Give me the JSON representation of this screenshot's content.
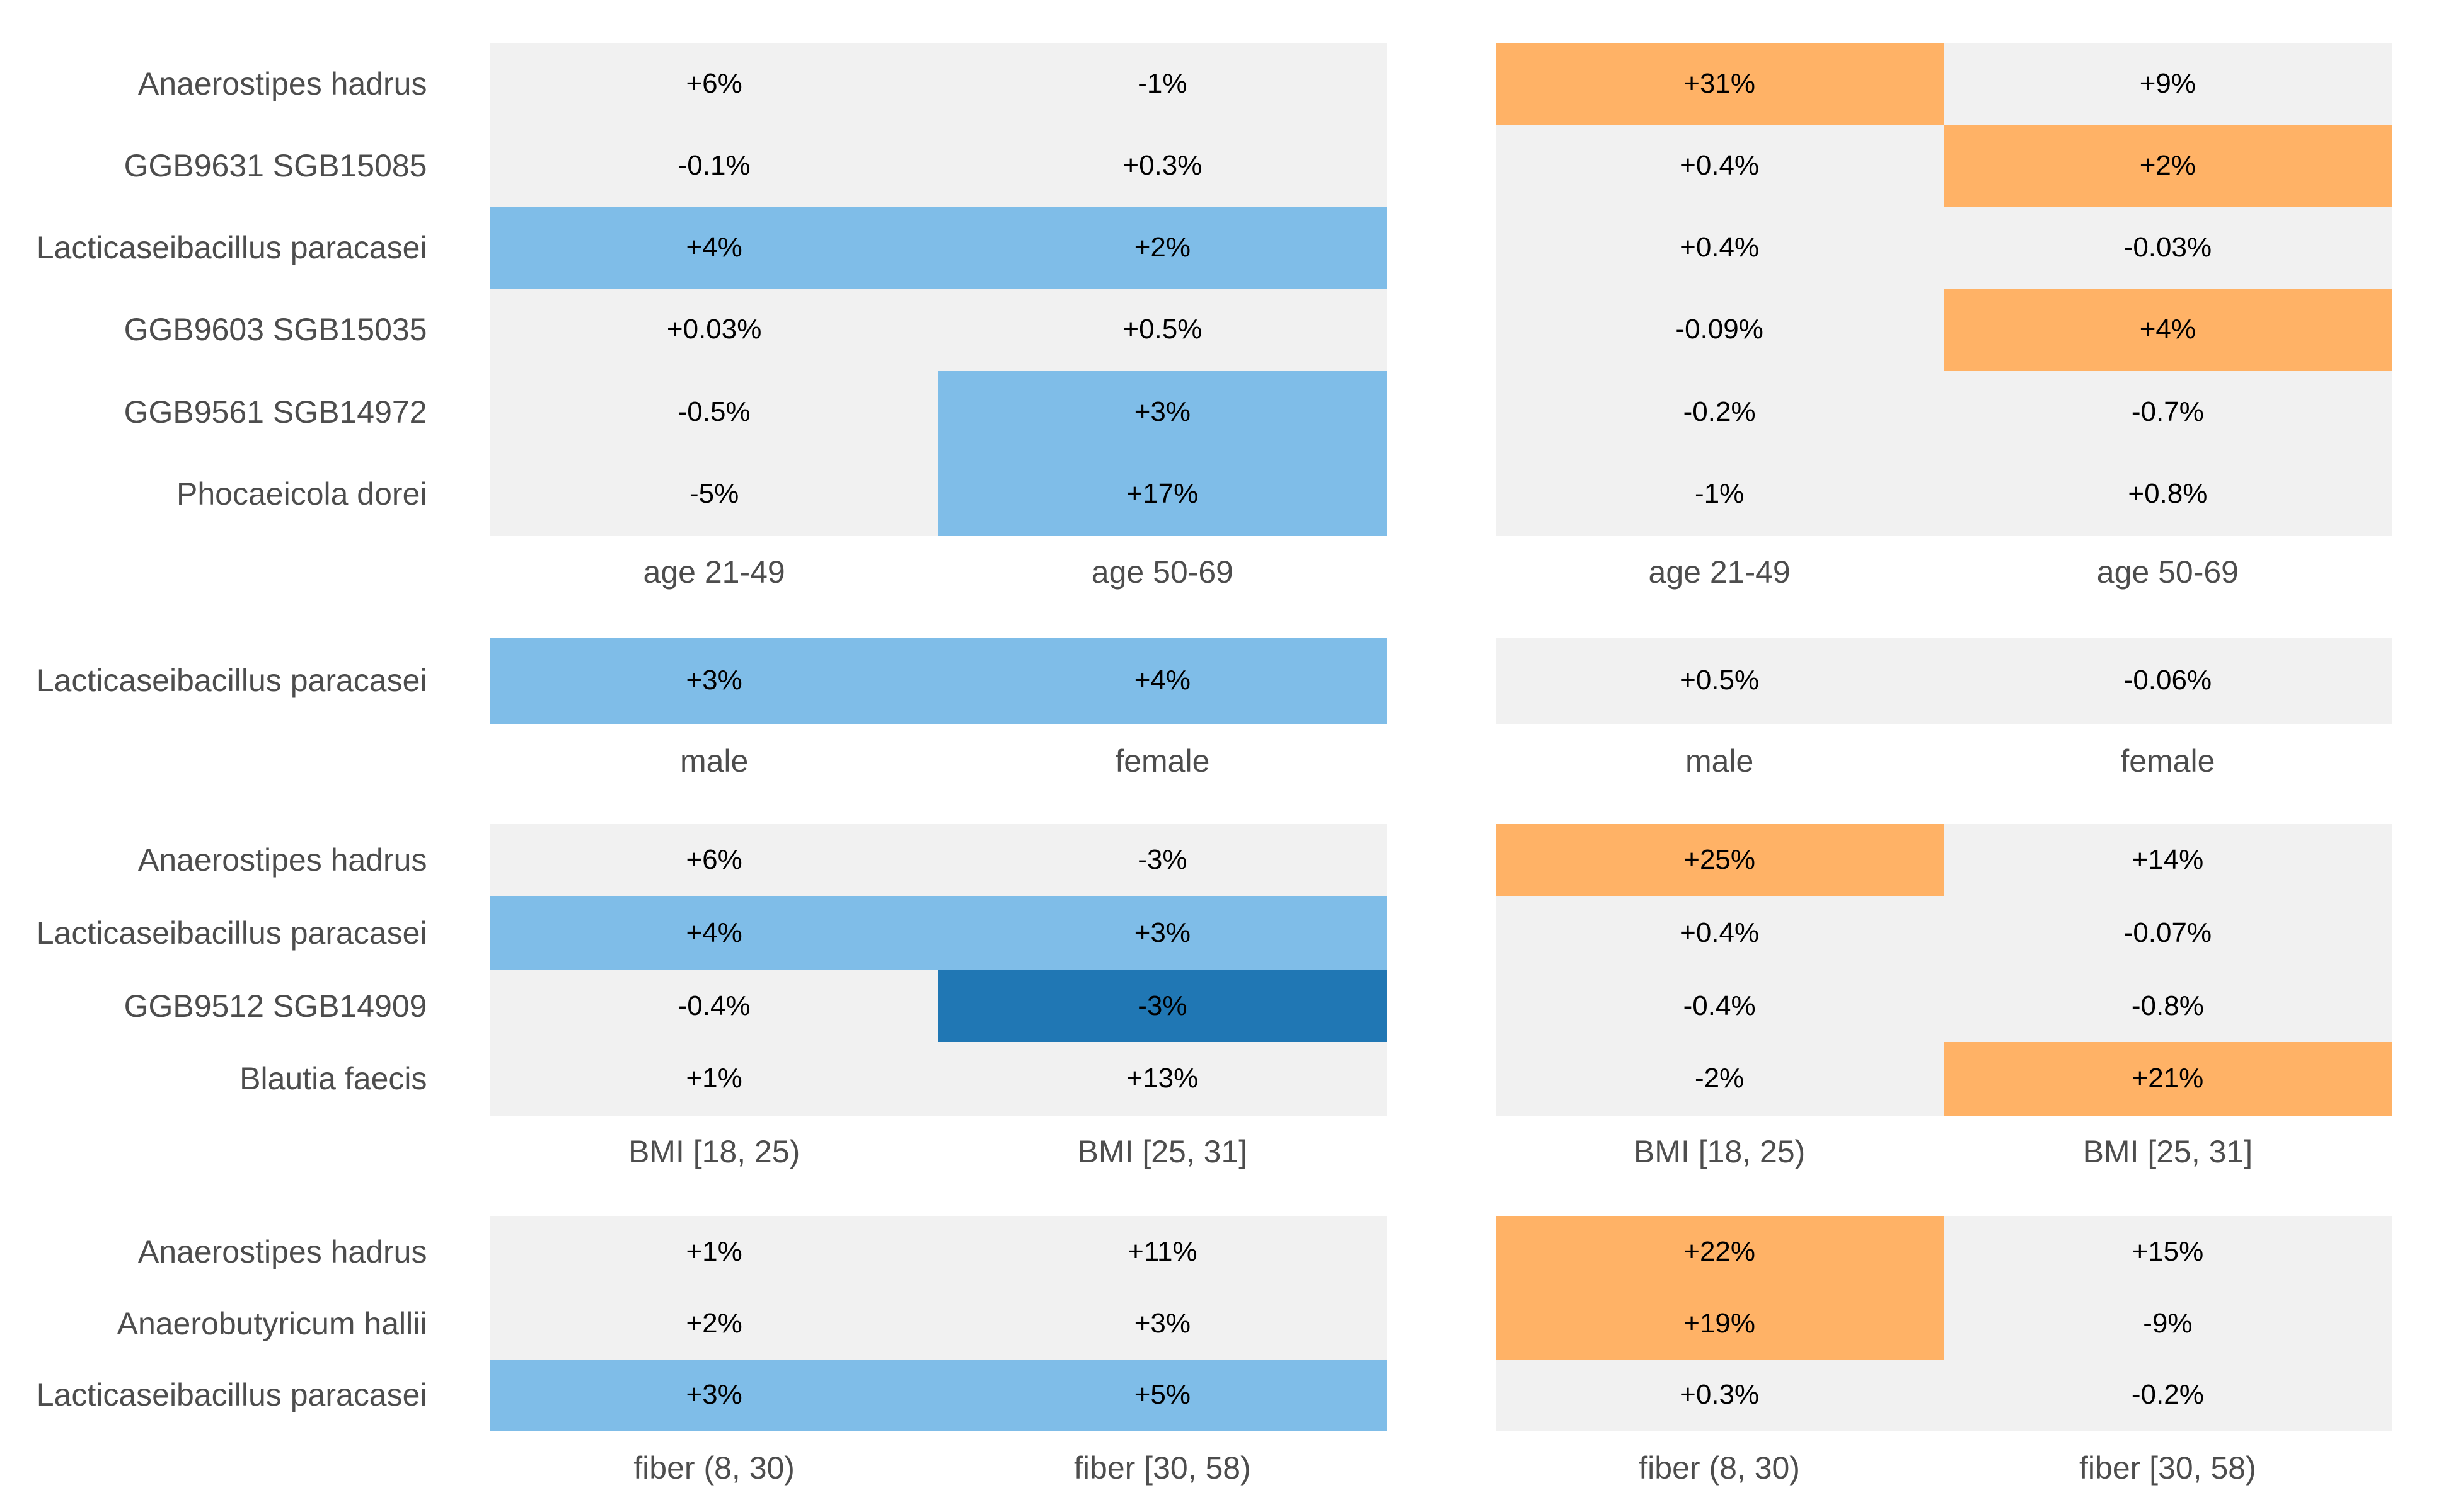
{
  "palette": {
    "neutral": "#f1f1f1",
    "blue_light": "#7fbde8",
    "blue_dark": "#2077b4",
    "orange": "#ffb266"
  },
  "chart_data": [
    {
      "type": "heatmap",
      "panel": "left",
      "groups": [
        {
          "rows": [
            "Anaerostipes hadrus",
            "GGB9631 SGB15085",
            "Lacticaseibacillus paracasei",
            "GGB9603 SGB15035",
            "GGB9561 SGB14972",
            "Phocaeicola dorei"
          ],
          "columns": [
            "age 21-49",
            "age 50-69"
          ],
          "values": [
            [
              "+6%",
              "-1%"
            ],
            [
              "-0.1%",
              "+0.3%"
            ],
            [
              "+4%",
              "+2%"
            ],
            [
              "+0.03%",
              "+0.5%"
            ],
            [
              "-0.5%",
              "+3%"
            ],
            [
              "-5%",
              "+17%"
            ]
          ],
          "colors": [
            [
              "neutral",
              "neutral"
            ],
            [
              "neutral",
              "neutral"
            ],
            [
              "blue_light",
              "blue_light"
            ],
            [
              "neutral",
              "neutral"
            ],
            [
              "neutral",
              "blue_light"
            ],
            [
              "neutral",
              "blue_light"
            ]
          ]
        },
        {
          "rows": [
            "Lacticaseibacillus paracasei"
          ],
          "columns": [
            "male",
            "female"
          ],
          "values": [
            [
              "+3%",
              "+4%"
            ]
          ],
          "colors": [
            [
              "blue_light",
              "blue_light"
            ]
          ]
        },
        {
          "rows": [
            "Anaerostipes hadrus",
            "Lacticaseibacillus paracasei",
            "GGB9512 SGB14909",
            "Blautia faecis"
          ],
          "columns": [
            "BMI [18, 25)",
            "BMI [25, 31]"
          ],
          "values": [
            [
              "+6%",
              "-3%"
            ],
            [
              "+4%",
              "+3%"
            ],
            [
              "-0.4%",
              "-3%"
            ],
            [
              "+1%",
              "+13%"
            ]
          ],
          "colors": [
            [
              "neutral",
              "neutral"
            ],
            [
              "blue_light",
              "blue_light"
            ],
            [
              "neutral",
              "blue_dark"
            ],
            [
              "neutral",
              "neutral"
            ]
          ]
        },
        {
          "rows": [
            "Anaerostipes hadrus",
            "Anaerobutyricum hallii",
            "Lacticaseibacillus paracasei"
          ],
          "columns": [
            "fiber (8, 30)",
            "fiber [30, 58)"
          ],
          "values": [
            [
              "+1%",
              "+11%"
            ],
            [
              "+2%",
              "+3%"
            ],
            [
              "+3%",
              "+5%"
            ]
          ],
          "colors": [
            [
              "neutral",
              "neutral"
            ],
            [
              "neutral",
              "neutral"
            ],
            [
              "blue_light",
              "blue_light"
            ]
          ]
        }
      ]
    },
    {
      "type": "heatmap",
      "panel": "right",
      "groups": [
        {
          "rows": [
            "Anaerostipes hadrus",
            "GGB9631 SGB15085",
            "Lacticaseibacillus paracasei",
            "GGB9603 SGB15035",
            "GGB9561 SGB14972",
            "Phocaeicola dorei"
          ],
          "columns": [
            "age 21-49",
            "age 50-69"
          ],
          "values": [
            [
              "+31%",
              "+9%"
            ],
            [
              "+0.4%",
              "+2%"
            ],
            [
              "+0.4%",
              "-0.03%"
            ],
            [
              "-0.09%",
              "+4%"
            ],
            [
              "-0.2%",
              "-0.7%"
            ],
            [
              "-1%",
              "+0.8%"
            ]
          ],
          "colors": [
            [
              "orange",
              "neutral"
            ],
            [
              "neutral",
              "orange"
            ],
            [
              "neutral",
              "neutral"
            ],
            [
              "neutral",
              "orange"
            ],
            [
              "neutral",
              "neutral"
            ],
            [
              "neutral",
              "neutral"
            ]
          ]
        },
        {
          "rows": [
            "Lacticaseibacillus paracasei"
          ],
          "columns": [
            "male",
            "female"
          ],
          "values": [
            [
              "+0.5%",
              "-0.06%"
            ]
          ],
          "colors": [
            [
              "neutral",
              "neutral"
            ]
          ]
        },
        {
          "rows": [
            "Anaerostipes hadrus",
            "Lacticaseibacillus paracasei",
            "GGB9512 SGB14909",
            "Blautia faecis"
          ],
          "columns": [
            "BMI [18, 25)",
            "BMI [25, 31]"
          ],
          "values": [
            [
              "+25%",
              "+14%"
            ],
            [
              "+0.4%",
              "-0.07%"
            ],
            [
              "-0.4%",
              "-0.8%"
            ],
            [
              "-2%",
              "+21%"
            ]
          ],
          "colors": [
            [
              "orange",
              "neutral"
            ],
            [
              "neutral",
              "neutral"
            ],
            [
              "neutral",
              "neutral"
            ],
            [
              "neutral",
              "orange"
            ]
          ]
        },
        {
          "rows": [
            "Anaerostipes hadrus",
            "Anaerobutyricum hallii",
            "Lacticaseibacillus paracasei"
          ],
          "columns": [
            "fiber (8, 30)",
            "fiber [30, 58)"
          ],
          "values": [
            [
              "+22%",
              "+15%"
            ],
            [
              "+19%",
              "-9%"
            ],
            [
              "+0.3%",
              "-0.2%"
            ]
          ],
          "colors": [
            [
              "orange",
              "neutral"
            ],
            [
              "orange",
              "neutral"
            ],
            [
              "neutral",
              "neutral"
            ]
          ]
        }
      ]
    }
  ]
}
